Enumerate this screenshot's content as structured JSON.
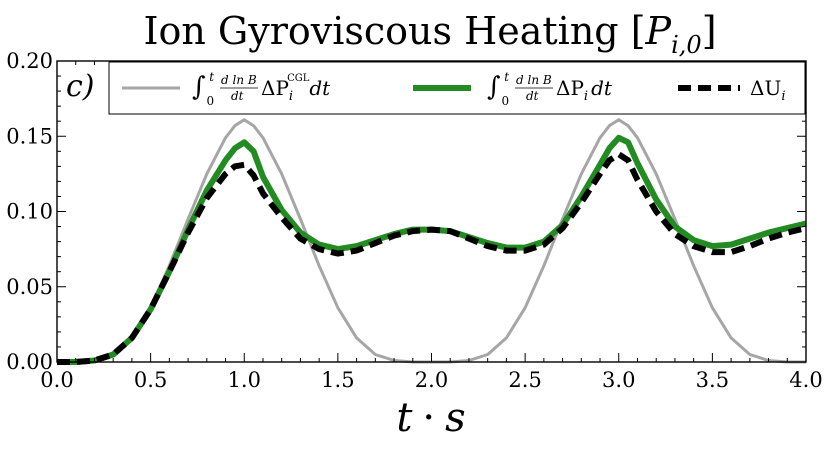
{
  "chart_data": {
    "type": "line",
    "title": "Ion Gyroviscous Heating [P_{i,0}]",
    "title_parts": {
      "main": "Ion Gyroviscous Heating [",
      "symbol": "P",
      "subscript": "i,0",
      "close": "]"
    },
    "panel_label": "c)",
    "xlabel": "t · s",
    "xlabel_parts": {
      "var1": "t",
      "op": "·",
      "var2": "s"
    },
    "ylabel": "",
    "xlim": [
      0.0,
      4.0
    ],
    "ylim": [
      0.0,
      0.2
    ],
    "xticks": [
      0.0,
      0.5,
      1.0,
      1.5,
      2.0,
      2.5,
      3.0,
      3.5,
      4.0
    ],
    "xtick_labels": [
      "0.0",
      "0.5",
      "1.0",
      "1.5",
      "2.0",
      "2.5",
      "3.0",
      "3.5",
      "4.0"
    ],
    "yticks": [
      0.0,
      0.05,
      0.1,
      0.15,
      0.2
    ],
    "ytick_labels": [
      "0.00",
      "0.05",
      "0.10",
      "0.15",
      "0.20"
    ],
    "grid": false,
    "legend_position": "top",
    "series": [
      {
        "name": "∫₀ᵗ (d ln B/dt) ΔP_i^CGL dt",
        "legend_parts": {
          "integral": "∫",
          "lower": "0",
          "upper": "t",
          "frac_num": "d ln B",
          "frac_den": "dt",
          "delta": "ΔP",
          "sub": "i",
          "sup": "CGL",
          "tail": "dt"
        },
        "color": "#a6a6a6",
        "style": "solid",
        "x": [
          0.0,
          0.1,
          0.2,
          0.3,
          0.4,
          0.5,
          0.6,
          0.7,
          0.8,
          0.9,
          0.95,
          1.0,
          1.05,
          1.1,
          1.2,
          1.3,
          1.4,
          1.5,
          1.6,
          1.7,
          1.8,
          1.9,
          2.0,
          2.1,
          2.2,
          2.3,
          2.4,
          2.5,
          2.6,
          2.7,
          2.8,
          2.9,
          2.95,
          3.0,
          3.05,
          3.1,
          3.2,
          3.3,
          3.4,
          3.5,
          3.6,
          3.7,
          3.8,
          3.9,
          4.0
        ],
        "y": [
          0.0,
          0.0,
          0.001,
          0.005,
          0.016,
          0.036,
          0.064,
          0.095,
          0.125,
          0.149,
          0.157,
          0.161,
          0.157,
          0.149,
          0.125,
          0.095,
          0.064,
          0.036,
          0.016,
          0.005,
          0.001,
          0.0,
          0.0,
          0.0,
          0.001,
          0.005,
          0.016,
          0.036,
          0.064,
          0.095,
          0.125,
          0.149,
          0.157,
          0.161,
          0.157,
          0.149,
          0.125,
          0.095,
          0.064,
          0.036,
          0.016,
          0.005,
          0.001,
          0.0,
          0.0
        ]
      },
      {
        "name": "∫₀ᵗ (d ln B/dt) ΔP_i dt",
        "legend_parts": {
          "integral": "∫",
          "lower": "0",
          "upper": "t",
          "frac_num": "d ln B",
          "frac_den": "dt",
          "delta": "ΔP",
          "sub": "i",
          "sup": "",
          "tail": "dt"
        },
        "color": "#228b22",
        "style": "solid",
        "x": [
          0.0,
          0.1,
          0.2,
          0.3,
          0.4,
          0.5,
          0.6,
          0.7,
          0.8,
          0.9,
          0.95,
          1.0,
          1.05,
          1.1,
          1.2,
          1.3,
          1.4,
          1.5,
          1.6,
          1.7,
          1.8,
          1.9,
          2.0,
          2.1,
          2.2,
          2.3,
          2.4,
          2.5,
          2.6,
          2.7,
          2.8,
          2.9,
          2.95,
          3.0,
          3.05,
          3.1,
          3.2,
          3.3,
          3.4,
          3.5,
          3.6,
          3.7,
          3.8,
          3.9,
          4.0
        ],
        "y": [
          0.0,
          0.0,
          0.001,
          0.005,
          0.016,
          0.035,
          0.06,
          0.088,
          0.114,
          0.134,
          0.142,
          0.146,
          0.14,
          0.123,
          0.101,
          0.086,
          0.078,
          0.075,
          0.077,
          0.081,
          0.085,
          0.088,
          0.088,
          0.087,
          0.083,
          0.079,
          0.076,
          0.076,
          0.08,
          0.091,
          0.11,
          0.131,
          0.142,
          0.149,
          0.146,
          0.132,
          0.108,
          0.09,
          0.081,
          0.077,
          0.078,
          0.082,
          0.086,
          0.089,
          0.092
        ]
      },
      {
        "name": "ΔU_i",
        "legend_parts": {
          "delta": "ΔU",
          "sub": "i"
        },
        "color": "#000000",
        "style": "dashed",
        "x": [
          0.0,
          0.1,
          0.2,
          0.3,
          0.4,
          0.5,
          0.6,
          0.7,
          0.8,
          0.9,
          0.95,
          1.0,
          1.05,
          1.1,
          1.2,
          1.3,
          1.4,
          1.5,
          1.6,
          1.7,
          1.8,
          1.9,
          2.0,
          2.1,
          2.2,
          2.3,
          2.4,
          2.5,
          2.6,
          2.7,
          2.8,
          2.9,
          2.95,
          3.0,
          3.05,
          3.1,
          3.2,
          3.3,
          3.4,
          3.5,
          3.6,
          3.7,
          3.8,
          3.9,
          4.0
        ],
        "y": [
          0.0,
          0.0,
          0.001,
          0.005,
          0.016,
          0.035,
          0.06,
          0.086,
          0.109,
          0.125,
          0.13,
          0.131,
          0.124,
          0.112,
          0.096,
          0.082,
          0.075,
          0.072,
          0.074,
          0.079,
          0.084,
          0.087,
          0.088,
          0.087,
          0.082,
          0.077,
          0.074,
          0.074,
          0.078,
          0.089,
          0.106,
          0.125,
          0.134,
          0.138,
          0.134,
          0.121,
          0.1,
          0.085,
          0.077,
          0.073,
          0.073,
          0.077,
          0.082,
          0.086,
          0.089
        ]
      }
    ]
  }
}
